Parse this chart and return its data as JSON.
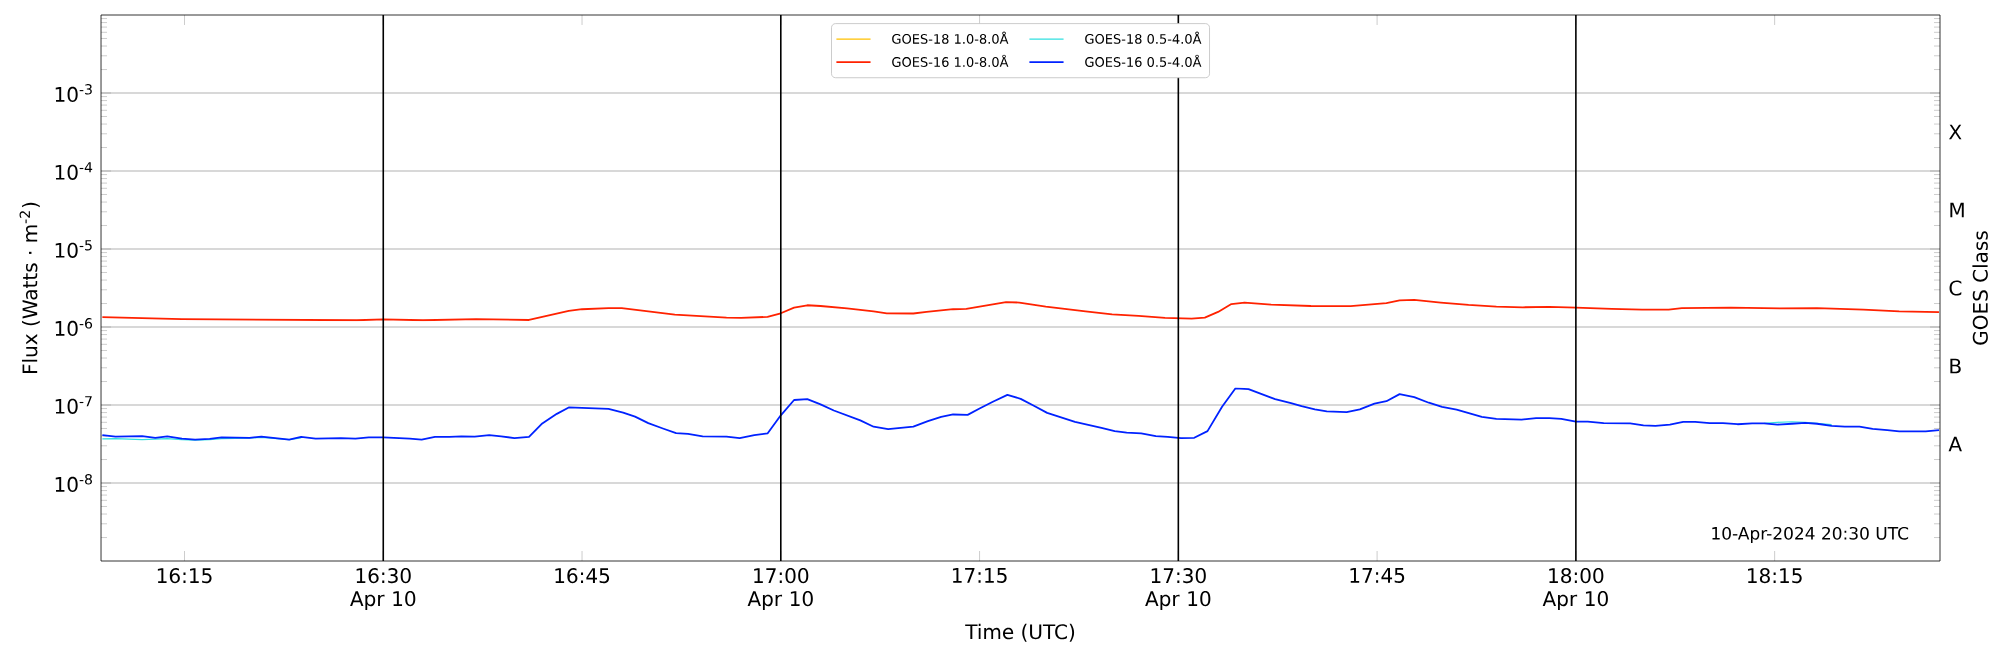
{
  "chart_data": {
    "type": "line",
    "xlabel": "Time (UTC)",
    "ylabel": "Flux (Watts · m$^{-2}$)",
    "y2label": "GOES Class",
    "log": "y",
    "grid": "y",
    "legend": "top",
    "xlim": [
      16.145,
      18.458
    ],
    "ylim": [
      1e-09,
      0.01
    ],
    "xticks": [
      {
        "value": 16.25,
        "label": "16:15"
      },
      {
        "value": 16.5,
        "label": "16:30 Apr 10"
      },
      {
        "value": 16.75,
        "label": "16:45"
      },
      {
        "value": 17.0,
        "label": "17:00 Apr 10"
      },
      {
        "value": 17.25,
        "label": "17:15"
      },
      {
        "value": 17.5,
        "label": "17:30 Apr 10"
      },
      {
        "value": 17.75,
        "label": "17:45"
      },
      {
        "value": 18.0,
        "label": "18:00 Apr 10"
      },
      {
        "value": 18.25,
        "label": "18:15"
      }
    ],
    "yticks": [
      {
        "value": 1e-08,
        "label": "10$^{-8}$"
      },
      {
        "value": 1e-07,
        "label": "10$^{-7}$"
      },
      {
        "value": 1e-06,
        "label": "10$^{-6}$"
      },
      {
        "value": 1e-05,
        "label": "10$^{-5}$"
      },
      {
        "value": 0.0001,
        "label": "10$^{-4}$"
      },
      {
        "value": 0.001,
        "label": "10$^{-3}$"
      }
    ],
    "ref_lines": [
      {
        "axis": "x",
        "value": 16.5,
        "color": "#000000"
      },
      {
        "axis": "x",
        "value": 17.0,
        "color": "#000000"
      },
      {
        "axis": "x",
        "value": 17.5,
        "color": "#000000"
      },
      {
        "axis": "x",
        "value": 18.0,
        "color": "#000000"
      }
    ],
    "annotations": [
      "10-Apr-2024 20:30 UTC",
      "A",
      "B",
      "C",
      "M",
      "X"
    ],
    "x": [
      16.1467,
      16.1633,
      16.1967,
      16.2133,
      16.2283,
      16.2467,
      16.2633,
      16.2817,
      16.2967,
      16.3317,
      16.3467,
      16.3817,
      16.3967,
      16.415,
      16.4467,
      16.465,
      16.4817,
      16.5,
      16.5333,
      16.5483,
      16.565,
      16.5833,
      16.5983,
      16.615,
      16.6333,
      16.6483,
      16.665,
      16.6833,
      16.7,
      16.7183,
      16.7333,
      16.7833,
      16.8017,
      16.8167,
      16.8333,
      16.8517,
      16.8683,
      16.8833,
      16.9017,
      16.9317,
      16.9483,
      16.9667,
      16.9833,
      17.0,
      17.0167,
      17.0333,
      17.05,
      17.0667,
      17.1,
      17.1167,
      17.135,
      17.1667,
      17.185,
      17.2017,
      17.2167,
      17.235,
      17.25,
      17.2667,
      17.285,
      17.3017,
      17.3183,
      17.335,
      17.37,
      17.4033,
      17.42,
      17.435,
      17.4533,
      17.4717,
      17.4867,
      17.5033,
      17.52,
      17.5367,
      17.555,
      17.5717,
      17.5883,
      17.6217,
      17.6417,
      17.655,
      17.6717,
      17.6867,
      17.7117,
      17.7283,
      17.7467,
      17.7617,
      17.7783,
      17.7967,
      17.815,
      17.8317,
      17.85,
      17.8817,
      17.9,
      17.9317,
      17.95,
      17.9667,
      17.9817,
      18.0,
      18.015,
      18.035,
      18.0683,
      18.085,
      18.1,
      18.1183,
      18.135,
      18.15,
      18.1683,
      18.185,
      18.2033,
      18.2217,
      18.2367,
      18.2533,
      18.2717,
      18.2883,
      18.3033,
      18.3217,
      18.3383,
      18.3567,
      18.3733,
      18.3917,
      18.4067,
      18.44,
      18.4567
    ],
    "series": [
      {
        "name": "GOES-18 1.0-8.0Å",
        "color": "#ffc000",
        "values": [
          null,
          null,
          null,
          null,
          null,
          null,
          null,
          null,
          null,
          null,
          null,
          null,
          null,
          null,
          null,
          null,
          null,
          null,
          null,
          null,
          null,
          null,
          null,
          null,
          null,
          null,
          null,
          null,
          null,
          null,
          null,
          null,
          null,
          null,
          null,
          null,
          null,
          null,
          null,
          null,
          null,
          null,
          null,
          null,
          null,
          null,
          null,
          null,
          null,
          null,
          null,
          null,
          null,
          null,
          null,
          null,
          null,
          null,
          null,
          null,
          null,
          null,
          null,
          null,
          null,
          null,
          null,
          null,
          null,
          null,
          null,
          null,
          null,
          null,
          null,
          null,
          null,
          null,
          null,
          null,
          null,
          null,
          null,
          null,
          null,
          null,
          null,
          null,
          null,
          null,
          null,
          null,
          null,
          null,
          null,
          null,
          null,
          null,
          null,
          null,
          null,
          null,
          null,
          null,
          null,
          null,
          null,
          null,
          null,
          null,
          null,
          null,
          null,
          null,
          null,
          null,
          null,
          null,
          null,
          null,
          null
        ]
      },
      {
        "name": "GOES-18 0.5-4.0Å",
        "color": "#30e0e0",
        "values": [
          3.67e-08,
          3.7e-08,
          3.6e-08,
          3.65e-08,
          3.7e-08,
          3.6e-08,
          3.55e-08,
          3.6e-08,
          3.7e-08,
          3.75e-08,
          3.85e-08,
          3.6e-08,
          3.8e-08,
          null,
          null,
          null,
          null,
          null,
          null,
          null,
          null,
          null,
          null,
          null,
          null,
          null,
          null,
          null,
          null,
          null,
          null,
          null,
          null,
          null,
          null,
          null,
          null,
          null,
          null,
          null,
          null,
          null,
          null,
          null,
          null,
          null,
          null,
          null,
          null,
          null,
          null,
          null,
          null,
          null,
          null,
          null,
          null,
          null,
          null,
          null,
          null,
          null,
          null,
          null,
          null,
          null,
          null,
          null,
          null,
          null,
          null,
          null,
          null,
          null,
          null,
          null,
          null,
          null,
          null,
          null,
          null,
          null,
          null,
          null,
          null,
          null,
          null,
          null,
          null,
          null,
          null,
          null,
          null,
          null,
          null,
          null,
          null,
          null,
          null,
          null,
          null,
          null,
          null,
          null,
          null,
          null,
          null,
          null,
          5.8e-08,
          6e-08,
          6.1e-08,
          6e-08,
          5.8e-08,
          5.6e-08,
          null,
          null,
          null,
          null,
          null,
          null,
          null
        ]
      },
      {
        "name": "GOES-16 1.0-8.0Å",
        "color": "#ff2200",
        "x": [
          16.1467,
          16.2467,
          16.4667,
          16.5,
          16.55,
          16.6167,
          16.6833,
          16.7333,
          16.75,
          16.7833,
          16.8,
          16.8667,
          16.9317,
          16.95,
          16.9833,
          17.0,
          17.0167,
          17.0333,
          17.05,
          17.0833,
          17.1167,
          17.1333,
          17.1667,
          17.1833,
          17.2167,
          17.2333,
          17.2833,
          17.3,
          17.3333,
          17.3833,
          17.4167,
          17.45,
          17.4833,
          17.5167,
          17.5333,
          17.55,
          17.5667,
          17.5833,
          17.6167,
          17.6667,
          17.7167,
          17.7617,
          17.7783,
          17.7967,
          17.83,
          17.865,
          17.9,
          17.9333,
          17.9667,
          18.0,
          18.045,
          18.0833,
          18.1167,
          18.1333,
          18.195,
          18.2567,
          18.3033,
          18.3617,
          18.4067,
          18.4567
        ],
        "values": [
          1.34e-06,
          1.26e-06,
          1.22e-06,
          1.25e-06,
          1.22e-06,
          1.26e-06,
          1.23e-06,
          1.61e-06,
          1.69e-06,
          1.75e-06,
          1.75e-06,
          1.44e-06,
          1.32e-06,
          1.31e-06,
          1.35e-06,
          1.5e-06,
          1.77e-06,
          1.9e-06,
          1.86e-06,
          1.73e-06,
          1.59e-06,
          1.5e-06,
          1.49e-06,
          1.56e-06,
          1.69e-06,
          1.71e-06,
          2.08e-06,
          2.06e-06,
          1.83e-06,
          1.59e-06,
          1.45e-06,
          1.39e-06,
          1.31e-06,
          1.28e-06,
          1.32e-06,
          1.56e-06,
          1.97e-06,
          2.06e-06,
          1.94e-06,
          1.86e-06,
          1.85e-06,
          2.03e-06,
          2.2e-06,
          2.23e-06,
          2.06e-06,
          1.92e-06,
          1.83e-06,
          1.79e-06,
          1.81e-06,
          1.77e-06,
          1.71e-06,
          1.67e-06,
          1.67e-06,
          1.75e-06,
          1.77e-06,
          1.73e-06,
          1.75e-06,
          1.67e-06,
          1.59e-06,
          1.55e-06
        ]
      },
      {
        "name": "GOES-16 0.5-4.0Å",
        "color": "#0022ff",
        "values": [
          4.12e-08,
          3.94e-08,
          4e-08,
          3.8e-08,
          3.97e-08,
          3.7e-08,
          3.6e-08,
          3.67e-08,
          3.84e-08,
          3.8e-08,
          3.94e-08,
          3.6e-08,
          3.9e-08,
          3.7e-08,
          3.76e-08,
          3.7e-08,
          3.84e-08,
          3.84e-08,
          3.7e-08,
          3.6e-08,
          3.9e-08,
          3.9e-08,
          3.97e-08,
          3.94e-08,
          4.1e-08,
          3.97e-08,
          3.76e-08,
          3.9e-08,
          5.8e-08,
          7.7e-08,
          9.3e-08,
          8.9e-08,
          8e-08,
          7.1e-08,
          5.85e-08,
          5e-08,
          4.37e-08,
          4.27e-08,
          3.97e-08,
          3.94e-08,
          3.76e-08,
          4.12e-08,
          4.32e-08,
          7.38e-08,
          1.16e-07,
          1.19e-07,
          1.02e-07,
          8.5e-08,
          6.35e-08,
          5.27e-08,
          4.91e-08,
          5.27e-08,
          6.2e-08,
          7.05e-08,
          7.56e-08,
          7.47e-08,
          9e-08,
          1.1e-07,
          1.35e-07,
          1.2e-07,
          9.77e-08,
          7.92e-08,
          6.06e-08,
          5.09e-08,
          4.63e-08,
          4.42e-08,
          4.32e-08,
          3.98e-08,
          3.9e-08,
          3.76e-08,
          3.8e-08,
          4.63e-08,
          9.5e-08,
          1.63e-07,
          1.6e-07,
          1.19e-07,
          1.06e-07,
          9.65e-08,
          8.8e-08,
          8.3e-08,
          8.1e-08,
          8.8e-08,
          1.04e-07,
          1.12e-07,
          1.38e-07,
          1.26e-07,
          1.07e-07,
          9.44e-08,
          8.7e-08,
          7.05e-08,
          6.65e-08,
          6.5e-08,
          6.8e-08,
          6.8e-08,
          6.65e-08,
          6.14e-08,
          6.14e-08,
          5.87e-08,
          5.8e-08,
          5.47e-08,
          5.4e-08,
          5.6e-08,
          6.08e-08,
          6.08e-08,
          5.87e-08,
          5.87e-08,
          5.67e-08,
          5.8e-08,
          5.8e-08,
          5.6e-08,
          5.75e-08,
          5.9e-08,
          5.75e-08,
          5.4e-08,
          5.28e-08,
          5.28e-08,
          4.93e-08,
          4.76e-08,
          4.6e-08,
          4.6e-08,
          4.76e-08
        ]
      }
    ]
  }
}
